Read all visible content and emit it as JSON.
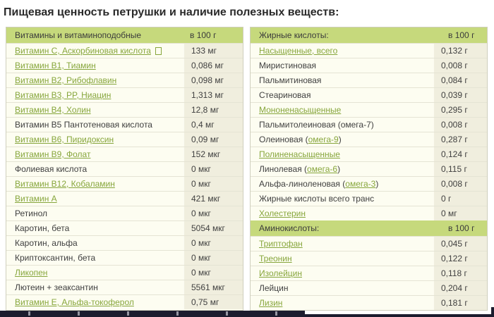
{
  "title": "Пищевая ценность петрушки и наличие полезных веществ:",
  "colors": {
    "header_bg": "#c6d97c",
    "link": "#87a63c"
  },
  "columns": [
    {
      "sections": [
        {
          "title": "Витамины и витаминоподобные",
          "unit": "в 100 г",
          "rows": [
            {
              "label": "Витамин C, Аскорбиновая кислота",
              "value": "133 мг",
              "link": true,
              "suffix_box": true
            },
            {
              "label": "Витамин B1, Тиамин",
              "value": "0,086 мг",
              "link": true
            },
            {
              "label": "Витамин B2, Рибофлавин",
              "value": "0,098 мг",
              "link": true
            },
            {
              "label": "Витамин B3, PP, Ниацин",
              "value": "1,313 мг",
              "link": true
            },
            {
              "label": "Витамин B4, Холин",
              "value": "12,8 мг",
              "link": true
            },
            {
              "label": "Витамин B5 Пантотеновая кислота",
              "value": "0,4 мг",
              "link": false
            },
            {
              "label": "Витамин B6, Пиридоксин",
              "value": "0,09 мг",
              "link": true
            },
            {
              "label": "Витамин B9, Фолат",
              "value": "152 мкг",
              "link": true
            },
            {
              "label": "Фолиевая кислота",
              "value": "0 мкг",
              "link": false
            },
            {
              "label": "Витамин B12, Кобаламин",
              "value": "0 мкг",
              "link": true
            },
            {
              "label": "Витамин A",
              "value": "421 мкг",
              "link": true
            },
            {
              "label": "Ретинол",
              "value": "0 мкг",
              "link": false
            },
            {
              "label": "Каротин, бета",
              "value": "5054 мкг",
              "link": false
            },
            {
              "label": "Каротин, альфа",
              "value": "0 мкг",
              "link": false
            },
            {
              "label": "Криптоксантин, бета",
              "value": "0 мкг",
              "link": false
            },
            {
              "label": "Ликопен",
              "value": "0 мкг",
              "link": true
            },
            {
              "label": "Лютеин + зеаксантин",
              "value": "5561 мкг",
              "link": false
            },
            {
              "label": "Витамин E, Альфа-токоферол",
              "value": "0,75 мг",
              "link": true
            }
          ]
        }
      ]
    },
    {
      "sections": [
        {
          "title": "Жирные кислоты:",
          "unit": "в 100 г",
          "rows": [
            {
              "label": "Насыщенные, всего",
              "value": "0,132 г",
              "link": true
            },
            {
              "label": "Миристиновая",
              "value": "0,008 г",
              "link": false
            },
            {
              "label": "Пальмитиновая",
              "value": "0,084 г",
              "link": false
            },
            {
              "label": "Стеариновая",
              "value": "0,039 г",
              "link": false
            },
            {
              "label": "Мононенасыщенные",
              "value": "0,295 г",
              "link": true
            },
            {
              "label": "Пальмитолеиновая (омега-7)",
              "value": "0,008 г",
              "link": false
            },
            {
              "parts": [
                {
                  "text": "Олеиновая ("
                },
                {
                  "text": "омега-9",
                  "link": true
                },
                {
                  "text": ")"
                }
              ],
              "value": "0,287 г"
            },
            {
              "label": "Полиненасыщенные",
              "value": "0,124 г",
              "link": true
            },
            {
              "parts": [
                {
                  "text": "Линолевая ("
                },
                {
                  "text": "омега-6",
                  "link": true
                },
                {
                  "text": ")"
                }
              ],
              "value": "0,115 г"
            },
            {
              "parts": [
                {
                  "text": "Альфа-линоленовая ("
                },
                {
                  "text": "омега-3",
                  "link": true
                },
                {
                  "text": ")"
                }
              ],
              "value": "0,008 г"
            },
            {
              "label": "Жирные кислоты всего транс",
              "value": "0 г",
              "link": false
            },
            {
              "label": "Холестерин",
              "value": "0 мг",
              "link": true
            }
          ]
        },
        {
          "title": "Аминокислоты:",
          "unit": "в 100 г",
          "rows": [
            {
              "label": "Триптофан",
              "value": "0,045 г",
              "link": true
            },
            {
              "label": "Треонин",
              "value": "0,122 г",
              "link": true
            },
            {
              "label": "Изолейцин",
              "value": "0,118 г",
              "link": true
            },
            {
              "label": "Лейцин",
              "value": "0,204 г",
              "link": false
            },
            {
              "label": "Лизин",
              "value": "0,181 г",
              "link": true
            }
          ]
        }
      ]
    }
  ]
}
